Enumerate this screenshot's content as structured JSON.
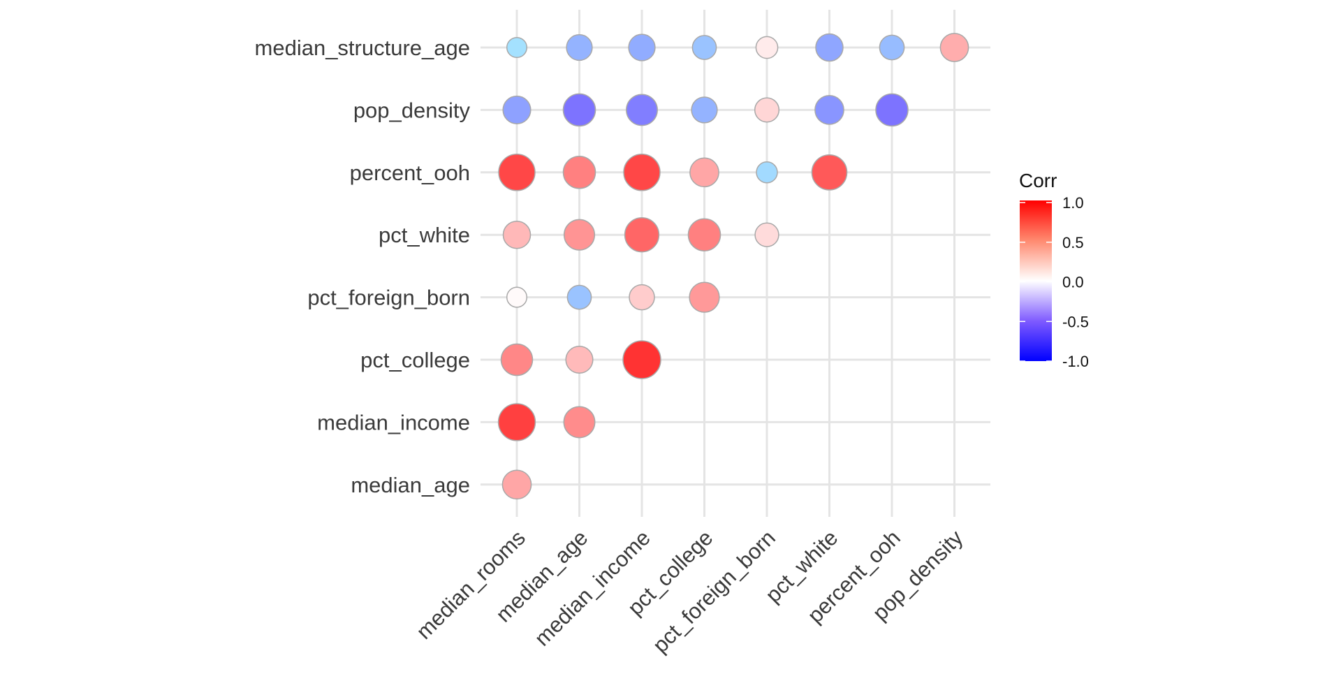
{
  "chart_data": {
    "type": "scatter",
    "variables": [
      "median_rooms",
      "median_age",
      "median_income",
      "pct_college",
      "pct_foreign_born",
      "pct_white",
      "percent_ooh",
      "pop_density",
      "median_structure_age"
    ],
    "x_labels": [
      "median_rooms",
      "median_age",
      "median_income",
      "pct_college",
      "pct_foreign_born",
      "pct_white",
      "percent_ooh",
      "pop_density"
    ],
    "y_labels": [
      "median_age",
      "median_income",
      "pct_college",
      "pct_foreign_born",
      "pct_white",
      "percent_ooh",
      "pop_density",
      "median_structure_age"
    ],
    "cells": [
      {
        "x": "median_rooms",
        "y": "median_age",
        "value": 0.35
      },
      {
        "x": "median_rooms",
        "y": "median_income",
        "value": 0.75
      },
      {
        "x": "median_age",
        "y": "median_income",
        "value": 0.45
      },
      {
        "x": "median_rooms",
        "y": "pct_college",
        "value": 0.47
      },
      {
        "x": "median_age",
        "y": "pct_college",
        "value": 0.27
      },
      {
        "x": "median_income",
        "y": "pct_college",
        "value": 0.8
      },
      {
        "x": "median_rooms",
        "y": "pct_foreign_born",
        "value": 0.02
      },
      {
        "x": "median_age",
        "y": "pct_foreign_born",
        "value": -0.15
      },
      {
        "x": "median_income",
        "y": "pct_foreign_born",
        "value": 0.2
      },
      {
        "x": "pct_college",
        "y": "pct_foreign_born",
        "value": 0.4
      },
      {
        "x": "median_rooms",
        "y": "pct_white",
        "value": 0.28
      },
      {
        "x": "median_age",
        "y": "pct_white",
        "value": 0.42
      },
      {
        "x": "median_income",
        "y": "pct_white",
        "value": 0.6
      },
      {
        "x": "pct_college",
        "y": "pct_white",
        "value": 0.5
      },
      {
        "x": "pct_foreign_born",
        "y": "pct_white",
        "value": 0.14
      },
      {
        "x": "median_rooms",
        "y": "percent_ooh",
        "value": 0.72
      },
      {
        "x": "median_age",
        "y": "percent_ooh",
        "value": 0.5
      },
      {
        "x": "median_income",
        "y": "percent_ooh",
        "value": 0.72
      },
      {
        "x": "pct_college",
        "y": "percent_ooh",
        "value": 0.35
      },
      {
        "x": "pct_foreign_born",
        "y": "percent_ooh",
        "value": -0.05
      },
      {
        "x": "pct_white",
        "y": "percent_ooh",
        "value": 0.65
      },
      {
        "x": "median_rooms",
        "y": "pop_density",
        "value": -0.3
      },
      {
        "x": "median_age",
        "y": "pop_density",
        "value": -0.5
      },
      {
        "x": "median_income",
        "y": "pop_density",
        "value": -0.45
      },
      {
        "x": "pct_college",
        "y": "pop_density",
        "value": -0.22
      },
      {
        "x": "pct_foreign_born",
        "y": "pop_density",
        "value": 0.16
      },
      {
        "x": "pct_white",
        "y": "pop_density",
        "value": -0.35
      },
      {
        "x": "percent_ooh",
        "y": "pop_density",
        "value": -0.5
      },
      {
        "x": "median_rooms",
        "y": "median_structure_age",
        "value": -0.02
      },
      {
        "x": "median_age",
        "y": "median_structure_age",
        "value": -0.22
      },
      {
        "x": "median_income",
        "y": "median_structure_age",
        "value": -0.25
      },
      {
        "x": "pct_college",
        "y": "median_structure_age",
        "value": -0.15
      },
      {
        "x": "pct_foreign_born",
        "y": "median_structure_age",
        "value": 0.08
      },
      {
        "x": "pct_white",
        "y": "median_structure_age",
        "value": -0.28
      },
      {
        "x": "percent_ooh",
        "y": "median_structure_age",
        "value": -0.18
      },
      {
        "x": "pop_density",
        "y": "median_structure_age",
        "value": 0.32
      }
    ],
    "size_encodes": "absolute correlation",
    "color_scale": {
      "low": "#0000ff",
      "mid": "#ffffff",
      "high": "#ff0000",
      "limits": [
        -1,
        1
      ]
    },
    "legend": {
      "title": "Corr",
      "ticks": [
        "1.0",
        "0.5",
        "0.0",
        "-0.5",
        "-1.0"
      ],
      "position": "right"
    },
    "grid": true
  }
}
